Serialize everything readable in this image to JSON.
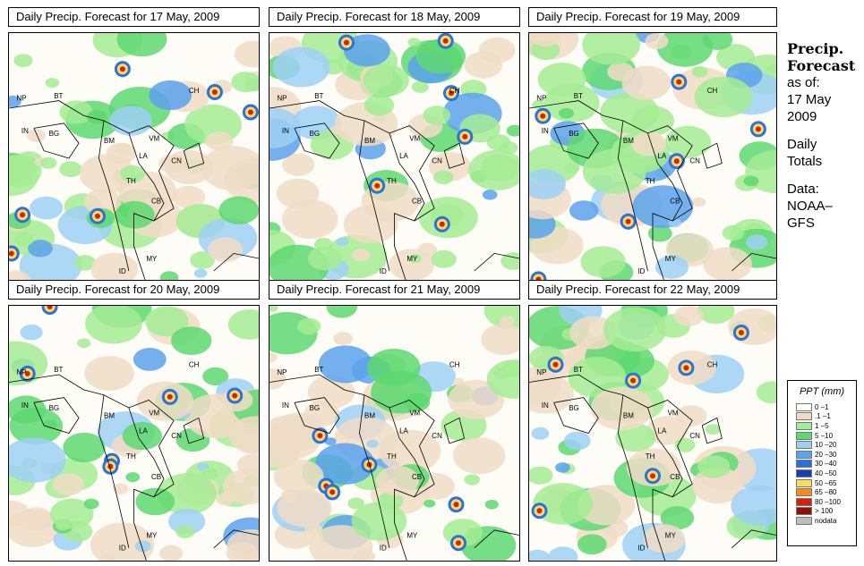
{
  "panels": [
    {
      "title": "Daily Precip. Forecast for  17 May, 2009"
    },
    {
      "title": "Daily Precip. Forecast for  18 May, 2009"
    },
    {
      "title": "Daily Precip. Forecast for  19 May, 2009"
    },
    {
      "title": "Daily Precip. Forecast for  20 May, 2009"
    },
    {
      "title": "Daily Precip. Forecast for  21 May, 2009"
    },
    {
      "title": "Daily Precip. Forecast for  22 May, 2009"
    }
  ],
  "map_labels": [
    "NP",
    "BT",
    "CH",
    "IN",
    "BG",
    "BM",
    "VM",
    "LA",
    "CN",
    "TH",
    "CB",
    "MY",
    "ID"
  ],
  "side": {
    "heading_line1": "Precip.",
    "heading_line2": "Forecast",
    "asof": "as of:",
    "date_line1": "17 May",
    "date_line2": "2009",
    "totals_line1": "Daily",
    "totals_line2": "Totals",
    "data_line1": "Data:",
    "data_line2": "NOAA–",
    "data_line3": "GFS"
  },
  "legend": {
    "title": "PPT (mm)",
    "items": [
      {
        "label": "0 –1",
        "color": "#ffffff"
      },
      {
        "label": ".1 –1",
        "color": "#f0dcc6"
      },
      {
        "label": "1 –5",
        "color": "#a4ec94"
      },
      {
        "label": "5 –10",
        "color": "#5ed870"
      },
      {
        "label": "10 –20",
        "color": "#9ed0f4"
      },
      {
        "label": "20 –30",
        "color": "#5ca2ec"
      },
      {
        "label": "30 –40",
        "color": "#2c70dc"
      },
      {
        "label": "40 –50",
        "color": "#1440b4"
      },
      {
        "label": "50 –65",
        "color": "#fcdc60"
      },
      {
        "label": "65 –80",
        "color": "#f48c1c"
      },
      {
        "label": "80 –100",
        "color": "#d42010"
      },
      {
        "label": "> 100",
        "color": "#901008"
      },
      {
        "label": "nodata",
        "color": "#bdbdbd"
      }
    ]
  }
}
